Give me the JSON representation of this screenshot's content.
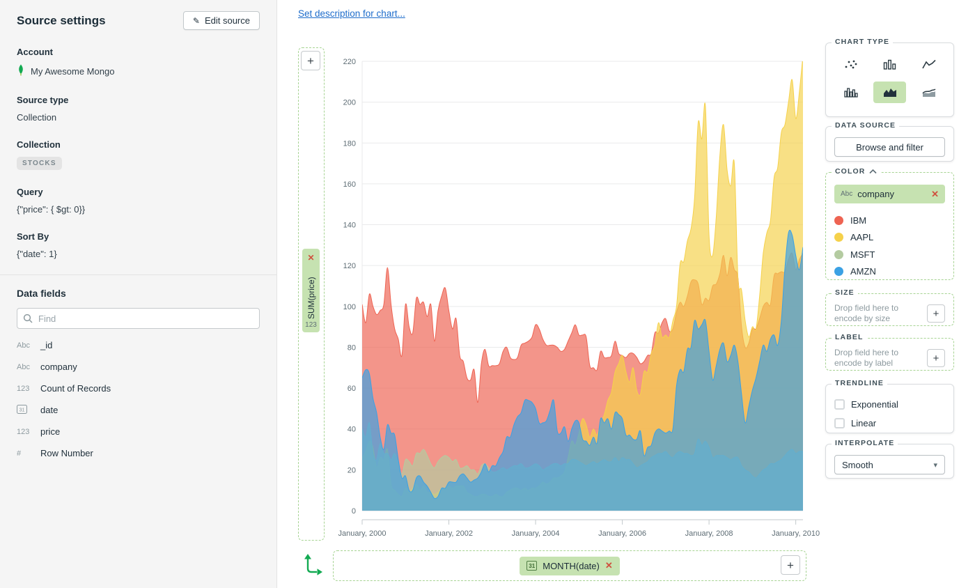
{
  "source_panel": {
    "title": "Source settings",
    "edit_button": "Edit source",
    "account_label": "Account",
    "account_value": "My Awesome Mongo",
    "source_type_label": "Source type",
    "source_type_value": "Collection",
    "collection_label": "Collection",
    "collection_value": "STOCKS",
    "query_label": "Query",
    "query_value": "{\"price\": { $gt: 0}}",
    "sort_label": "Sort By",
    "sort_value": "{\"date\": 1}",
    "data_fields_title": "Data fields",
    "search_placeholder": "Find",
    "fields": [
      {
        "type": "Abc",
        "name": "_id"
      },
      {
        "type": "Abc",
        "name": "company"
      },
      {
        "type": "123",
        "name": "Count of Records"
      },
      {
        "type": "date",
        "name": "date"
      },
      {
        "type": "123",
        "name": "price"
      },
      {
        "type": "#",
        "name": "Row Number"
      }
    ]
  },
  "canvas": {
    "description_link": "Set description for chart...",
    "y_axis_field": "SUM(price)",
    "y_axis_field_type": "123",
    "x_axis_field": "MONTH(date)"
  },
  "chart_data": {
    "type": "area",
    "x_unit": "month",
    "x_start": "2000-01",
    "x_end": "2010-03",
    "x_tick_labels": [
      "January, 2000",
      "January, 2002",
      "January, 2004",
      "January, 2006",
      "January, 2008",
      "January, 2010"
    ],
    "x_tick_indices": [
      0,
      24,
      48,
      72,
      96,
      120
    ],
    "ylabel": "SUM(price)",
    "ylim": [
      0,
      220
    ],
    "y_tick_step": 20,
    "grid": "horizontal",
    "fill_opacity": 0.68,
    "interpolate": "smooth",
    "series": [
      {
        "name": "IBM",
        "color": "#ee6352",
        "values": [
          101,
          92,
          106,
          100,
          96,
          98,
          101,
          119,
          101,
          89,
          84,
          76,
          101,
          90,
          87,
          104,
          101,
          102,
          95,
          101,
          83,
          98,
          105,
          109,
          98,
          89,
          94,
          76,
          73,
          65,
          64,
          69,
          53,
          72,
          79,
          71,
          71,
          71,
          72,
          78,
          80,
          75,
          74,
          75,
          81,
          82,
          83,
          85,
          91,
          89,
          84,
          81,
          81,
          81,
          80,
          78,
          79,
          83,
          87,
          91,
          86,
          86,
          85,
          71,
          70,
          69,
          78,
          75,
          75,
          76,
          83,
          77,
          76,
          75,
          77,
          77,
          75,
          72,
          73,
          76,
          77,
          87,
          87,
          92,
          94,
          88,
          89,
          97,
          102,
          100,
          105,
          112,
          113,
          111,
          101,
          104,
          103,
          110,
          111,
          116,
          125,
          115,
          124,
          118,
          114,
          90,
          80,
          82,
          89,
          89,
          94,
          100,
          102,
          101,
          115,
          116,
          117,
          117,
          123,
          126,
          118,
          123,
          126
        ]
      },
      {
        "name": "AAPL",
        "color": "#f5d14b",
        "values": [
          26,
          29,
          34,
          31,
          21,
          26,
          25,
          30,
          13,
          10,
          8,
          7,
          11,
          9,
          11,
          13,
          10,
          12,
          9,
          9,
          8,
          9,
          11,
          11,
          12,
          11,
          12,
          12,
          12,
          9,
          8,
          7,
          7,
          8,
          8,
          7,
          7,
          8,
          7,
          7,
          9,
          10,
          11,
          11,
          10,
          11,
          10,
          11,
          11,
          12,
          14,
          13,
          14,
          16,
          16,
          17,
          19,
          26,
          34,
          32,
          38,
          45,
          42,
          36,
          40,
          37,
          43,
          47,
          54,
          58,
          68,
          72,
          76,
          68,
          63,
          70,
          59,
          57,
          68,
          68,
          77,
          81,
          92,
          85,
          86,
          85,
          93,
          100,
          121,
          122,
          132,
          138,
          153,
          190,
          182,
          198,
          135,
          125,
          144,
          174,
          189,
          167,
          159,
          170,
          114,
          108,
          93,
          85,
          90,
          89,
          105,
          126,
          136,
          142,
          163,
          168,
          185,
          189,
          200,
          211,
          192,
          205,
          223
        ]
      },
      {
        "name": "MSFT",
        "color": "#b4cba1",
        "values": [
          40,
          36,
          43,
          28,
          25,
          33,
          28,
          28,
          25,
          28,
          23,
          18,
          25,
          24,
          22,
          28,
          28,
          30,
          27,
          23,
          21,
          24,
          26,
          27,
          26,
          24,
          25,
          21,
          21,
          22,
          20,
          20,
          18,
          22,
          23,
          21,
          19,
          19,
          20,
          21,
          20,
          21,
          22,
          22,
          23,
          21,
          21,
          22,
          23,
          22,
          20,
          21,
          22,
          23,
          23,
          22,
          23,
          23,
          25,
          25,
          24,
          23,
          22,
          23,
          24,
          23,
          24,
          25,
          24,
          24,
          26,
          24,
          26,
          25,
          25,
          23,
          21,
          22,
          23,
          24,
          26,
          27,
          28,
          28,
          29,
          27,
          26,
          28,
          29,
          28,
          28,
          27,
          28,
          35,
          32,
          34,
          31,
          26,
          27,
          27,
          27,
          26,
          25,
          26,
          26,
          22,
          20,
          19,
          17,
          16,
          18,
          20,
          21,
          23,
          23,
          24,
          25,
          27,
          29,
          30,
          28,
          29,
          29
        ]
      },
      {
        "name": "AMZN",
        "color": "#3ba1e4",
        "values": [
          65,
          69,
          67,
          55,
          48,
          36,
          30,
          42,
          38,
          37,
          25,
          16,
          17,
          10,
          10,
          16,
          17,
          14,
          12,
          9,
          6,
          7,
          11,
          11,
          14,
          14,
          14,
          17,
          18,
          16,
          14,
          15,
          16,
          19,
          23,
          19,
          22,
          22,
          26,
          29,
          36,
          36,
          42,
          46,
          48,
          54,
          54,
          53,
          50,
          43,
          43,
          44,
          49,
          54,
          39,
          38,
          41,
          34,
          40,
          44,
          43,
          35,
          34,
          32,
          36,
          33,
          45,
          43,
          45,
          40,
          48,
          47,
          45,
          37,
          37,
          35,
          35,
          39,
          27,
          31,
          32,
          38,
          40,
          39,
          38,
          39,
          40,
          61,
          69,
          68,
          79,
          80,
          93,
          89,
          91,
          93,
          78,
          64,
          71,
          79,
          82,
          73,
          76,
          81,
          73,
          57,
          43,
          51,
          59,
          65,
          73,
          81,
          78,
          84,
          86,
          81,
          93,
          119,
          136,
          135,
          125,
          118,
          129
        ]
      }
    ]
  },
  "right_panel": {
    "chart_type": {
      "title": "CHART TYPE",
      "options": [
        {
          "name": "scatter",
          "selected": false
        },
        {
          "name": "column",
          "selected": false
        },
        {
          "name": "line",
          "selected": false
        },
        {
          "name": "histogram",
          "selected": false
        },
        {
          "name": "area",
          "selected": true
        },
        {
          "name": "stacked-area",
          "selected": false
        }
      ]
    },
    "data_source": {
      "title": "DATA SOURCE",
      "button_label": "Browse and filter"
    },
    "color": {
      "title": "COLOR",
      "field_type": "Abc",
      "field_name": "company"
    },
    "size": {
      "title": "SIZE",
      "hint_line1": "Drop field here to",
      "hint_line2": "encode by size"
    },
    "label": {
      "title": "LABEL",
      "hint_line1": "Drop field here to",
      "hint_line2": "encode by label"
    },
    "trendline": {
      "title": "TRENDLINE",
      "options": [
        {
          "label": "Exponential",
          "checked": false
        },
        {
          "label": "Linear",
          "checked": false
        }
      ]
    },
    "interpolate": {
      "title": "INTERPOLATE",
      "value": "Smooth"
    }
  }
}
